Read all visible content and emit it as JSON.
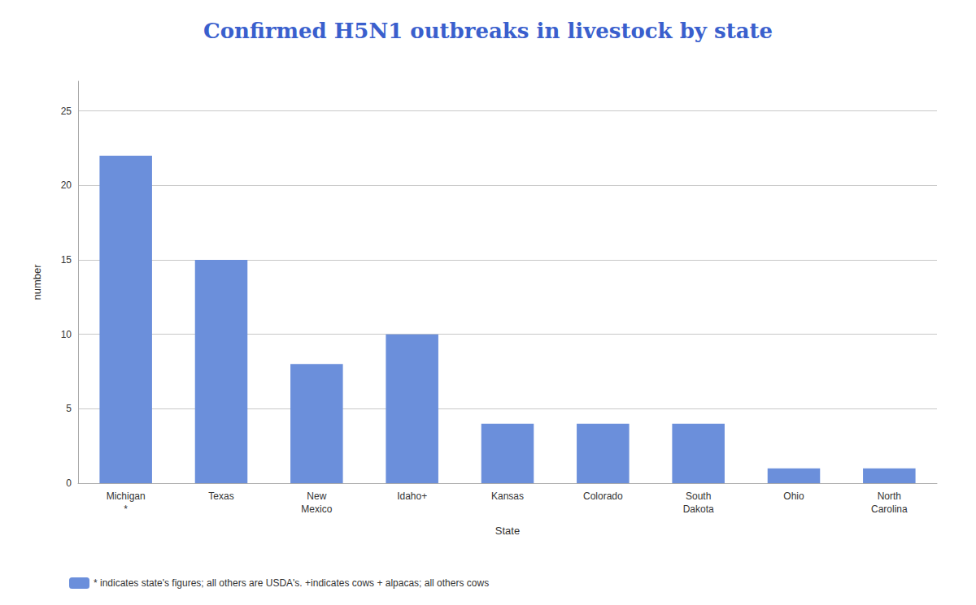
{
  "chart_data": {
    "type": "bar",
    "title": "Confirmed H5N1 outbreaks in livestock by state",
    "xlabel": "State",
    "ylabel": "number",
    "categories": [
      "Michigan\n*",
      "Texas",
      "New\nMexico",
      "Idaho+",
      "Kansas",
      "Colorado",
      "South\nDakota",
      "Ohio",
      "North\nCarolina"
    ],
    "series": [
      {
        "name": "* indicates state's figures; all others are USDA's. +indicates cows + alpacas; all others cows",
        "color": "#6b8fdb",
        "values": [
          22,
          15,
          8,
          10,
          4,
          4,
          4,
          1,
          1
        ]
      }
    ],
    "ylim": [
      0,
      27
    ],
    "yticks": [
      0,
      5,
      10,
      15,
      20,
      25
    ],
    "grid": true,
    "legend": "lower left"
  }
}
